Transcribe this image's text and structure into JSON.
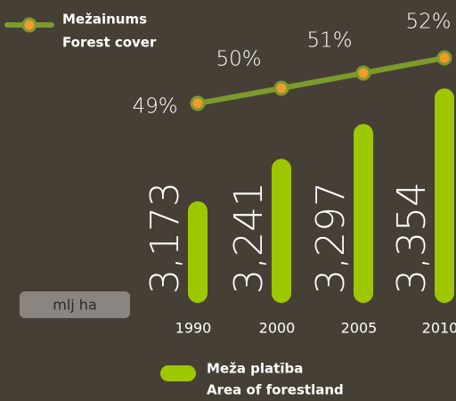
{
  "chart_data": {
    "type": "bar",
    "categories": [
      "1990",
      "2000",
      "2005",
      "2010"
    ],
    "unit_label": "mlj ha",
    "ylim": [
      3.01,
      3.36
    ],
    "y2lim": [
      40,
      55
    ],
    "series": [
      {
        "name": "Meža platība",
        "name_en": "Area of forestland",
        "color": "#9dc700",
        "values": [
          3.173,
          3.241,
          3.297,
          3.354
        ],
        "value_labels": [
          "3,173",
          "3,241",
          "3,297",
          "3,354"
        ]
      },
      {
        "name": "Mežainums",
        "name_en": "Forest cover",
        "type": "line",
        "axis": "y2",
        "color": "#7d9a2c",
        "marker_color": "#f39a2d",
        "values": [
          49,
          50,
          51,
          52
        ],
        "value_labels": [
          "49%",
          "50%",
          "51%",
          "52%"
        ]
      }
    ]
  }
}
